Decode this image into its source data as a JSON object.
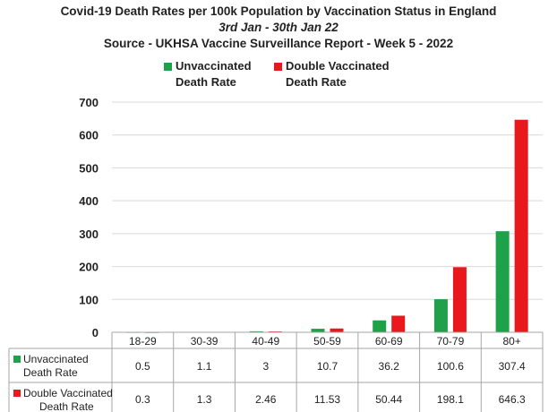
{
  "chart_data": {
    "type": "bar",
    "title": "Covid-19 Death Rates per 100k Population by Vaccination Status in England",
    "subtitle": "3rd Jan - 30th Jan 22",
    "source": "Source - UKHSA Vaccine Surveillance Report - Week 5 - 2022",
    "categories": [
      "18-29",
      "30-39",
      "40-49",
      "50-59",
      "60-69",
      "70-79",
      "80+"
    ],
    "series": [
      {
        "name_line1": "Unvaccinated",
        "name_line2": "Death Rate",
        "color": "#1fa14a",
        "values": [
          0.5,
          1.1,
          3,
          10.7,
          36.2,
          100.6,
          307.4
        ],
        "labels": [
          "0.5",
          "1.1",
          "3",
          "10.7",
          "36.2",
          "100.6",
          "307.4"
        ]
      },
      {
        "name_line1": "Double Vaccinated",
        "name_line2": "Death Rate",
        "color": "#e8181c",
        "values": [
          0.3,
          1.3,
          2.46,
          11.53,
          50.44,
          198.1,
          646.3
        ],
        "labels": [
          "0.3",
          "1.3",
          "2.46",
          "11.53",
          "50.44",
          "198.1",
          "646.3"
        ]
      }
    ],
    "yticks": [
      0,
      100,
      200,
      300,
      400,
      500,
      600,
      700
    ],
    "ylim": [
      0,
      700
    ],
    "grid": true,
    "legend_position": "top-center",
    "data_table": true
  }
}
